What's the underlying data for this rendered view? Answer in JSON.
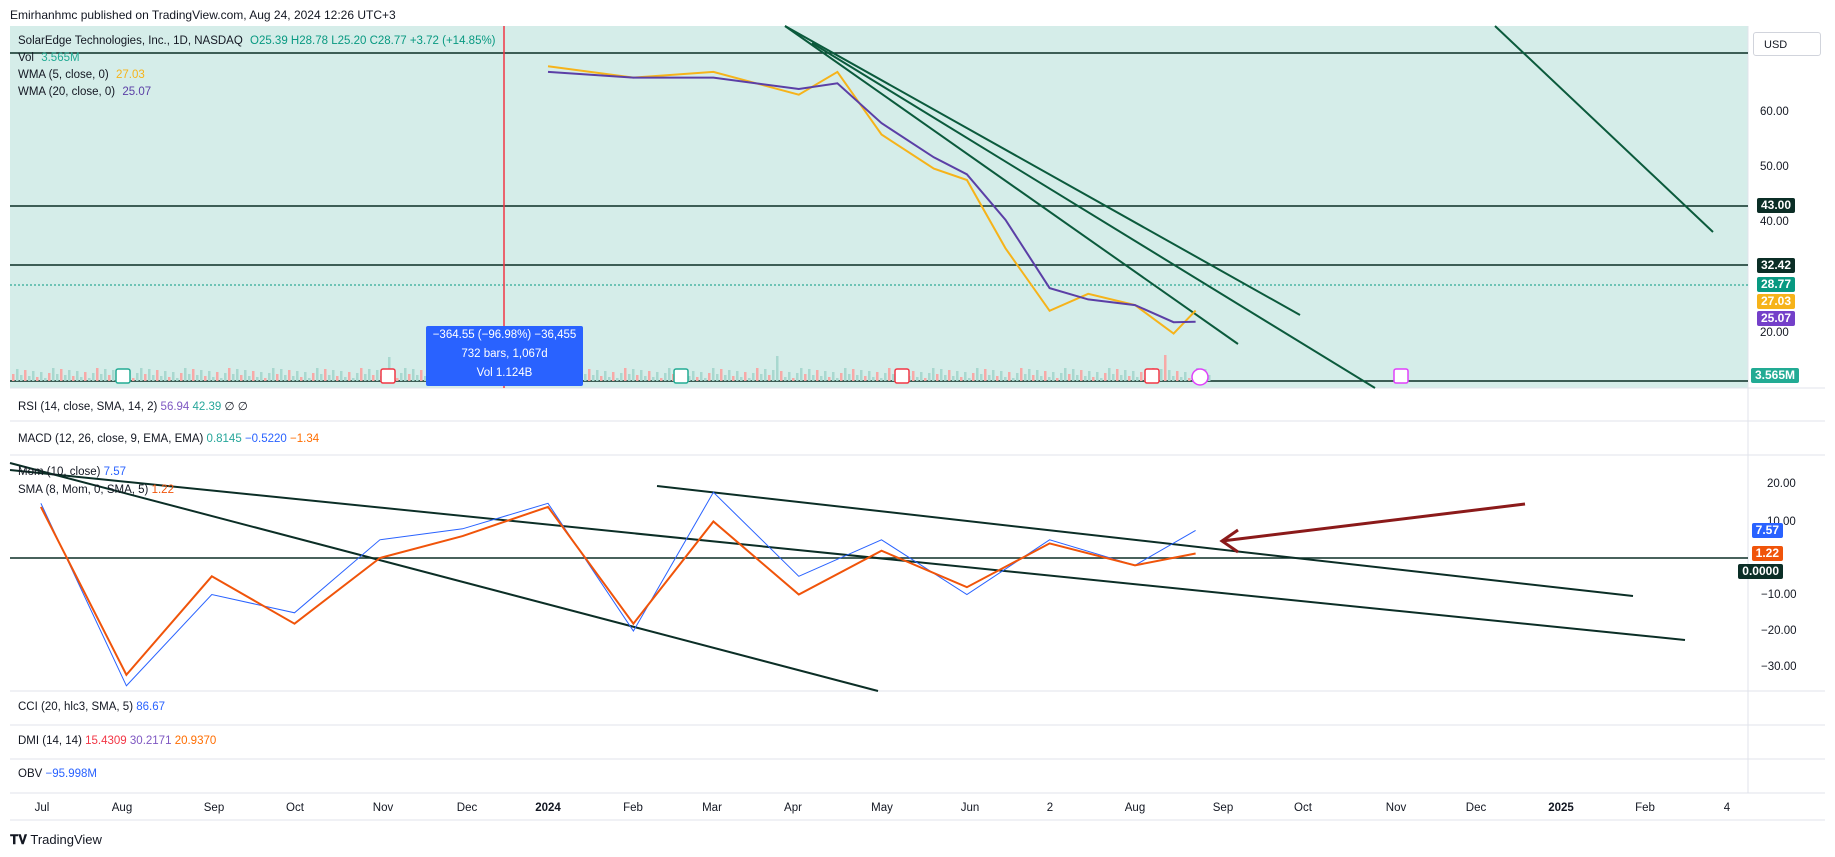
{
  "header": {
    "credit": "Emirhanhmc published on TradingView.com, Aug 24, 2024 12:26 UTC+3"
  },
  "legend": {
    "symbol": "SolarEdge Technologies, Inc., 1D, NASDAQ",
    "ohlc": "O25.39 H28.78 L25.20 C28.77 +3.72 (+14.85%)",
    "vol_label": "Vol",
    "vol_value": "3.565M",
    "wma5_label": "WMA (5, close, 0)",
    "wma5_value": "27.03",
    "wma20_label": "WMA (20, close, 0)",
    "wma20_value": "25.07"
  },
  "usd_button": "USD",
  "price_axis": {
    "ticks": [
      "60.00",
      "50.00",
      "40.00",
      "20.00"
    ],
    "tags": [
      {
        "label": "43.00",
        "color": "#0b2e26"
      },
      {
        "label": "32.42",
        "color": "#0b2e26"
      },
      {
        "label": "28.77",
        "color": "#089981"
      },
      {
        "label": "27.03",
        "color": "#f6b31a"
      },
      {
        "label": "25.07",
        "color": "#7440c9"
      },
      {
        "label": "3.565M",
        "color": "#22ab94"
      }
    ]
  },
  "measure": {
    "line1": "−364.55 (−96.98%) −36,455",
    "line2": "732 bars, 1,067d",
    "line3": "Vol 1.124B"
  },
  "panes": {
    "rsi": "RSI (14, close, SMA, 14, 2)",
    "rsi_v1": "56.94",
    "rsi_v2": "42.39",
    "rsi_v3": "∅ ∅",
    "macd": "MACD (12, 26, close, 9, EMA, EMA)",
    "macd_v1": "0.8145",
    "macd_v2": "−0.5220",
    "macd_v3": "−1.34",
    "mom": "Mom (10, close)",
    "mom_v": "7.57",
    "sma": "SMA (8, Mom, 0, SMA, 5)",
    "sma_v": "1.22",
    "cci": "CCI (20, hlc3, SMA, 5)",
    "cci_v": "86.67",
    "dmi": "DMI (14, 14)",
    "dmi_v1": "15.4309",
    "dmi_v2": "30.2171",
    "dmi_v3": "20.9370",
    "obv": "OBV",
    "obv_v": "−95.998M"
  },
  "mom_axis": {
    "ticks": [
      "20.00",
      "10.00",
      "−10.00",
      "−20.00",
      "−30.00"
    ],
    "tags": [
      {
        "label": "7.57",
        "color": "#2962ff"
      },
      {
        "label": "1.22",
        "color": "#f0540a"
      },
      {
        "label": "0.0000",
        "color": "#0b2e26"
      }
    ]
  },
  "time_axis": [
    "Jul",
    "Aug",
    "Sep",
    "Oct",
    "Nov",
    "Dec",
    "2024",
    "Feb",
    "Mar",
    "Apr",
    "May",
    "Jun",
    "2",
    "Aug",
    "Sep",
    "Oct",
    "Nov",
    "Dec",
    "2025",
    "Feb",
    "4"
  ],
  "footer": {
    "brand": "TradingView"
  },
  "chart_data": [
    {
      "type": "line",
      "title": "SolarEdge Technologies, Inc., 1D, NASDAQ",
      "ylabel": "USD",
      "ylim": [
        18,
        74
      ],
      "grid": true,
      "horizontal_levels": [
        43.0,
        32.42,
        72.0
      ],
      "series": [
        {
          "name": "WMA (5, close, 0)",
          "color": "#f6b31a",
          "x": [
            "2024-01-01",
            "2024-02-01",
            "2024-03-01",
            "2024-04-01",
            "2024-04-15",
            "2024-05-01",
            "2024-05-20",
            "2024-06-01",
            "2024-06-15",
            "2024-07-01",
            "2024-07-15",
            "2024-08-01",
            "2024-08-15",
            "2024-08-23"
          ],
          "values": [
            70,
            68,
            69,
            65,
            69,
            58,
            52,
            50,
            38,
            27,
            30,
            28,
            23,
            27.03
          ]
        },
        {
          "name": "WMA (20, close, 0)",
          "color": "#5b3fa6",
          "x": [
            "2024-01-01",
            "2024-02-01",
            "2024-03-01",
            "2024-04-01",
            "2024-04-15",
            "2024-05-01",
            "2024-05-20",
            "2024-06-01",
            "2024-06-15",
            "2024-07-01",
            "2024-07-15",
            "2024-08-01",
            "2024-08-15",
            "2024-08-23"
          ],
          "values": [
            69,
            68,
            68,
            66,
            67,
            60,
            54,
            51,
            43,
            31,
            29,
            28,
            25,
            25.07
          ]
        }
      ],
      "last_close": 28.77
    },
    {
      "type": "line",
      "title": "Mom (10, close)",
      "ylim": [
        -36,
        24
      ],
      "series": [
        {
          "name": "Mom (10, close)",
          "color": "#2962ff",
          "x": [
            "2023-07",
            "2023-08",
            "2023-09",
            "2023-10",
            "2023-11",
            "2023-12",
            "2024-01",
            "2024-02",
            "2024-03",
            "2024-04",
            "2024-05",
            "2024-06",
            "2024-07",
            "2024-08",
            "2024-08-23"
          ],
          "values": [
            15,
            -35,
            -10,
            -15,
            5,
            8,
            15,
            -20,
            18,
            -5,
            5,
            -10,
            5,
            -2,
            7.57
          ]
        },
        {
          "name": "SMA (8, Mom, 0, SMA, 5)",
          "color": "#f0540a",
          "x": [
            "2023-07",
            "2023-08",
            "2023-09",
            "2023-10",
            "2023-11",
            "2023-12",
            "2024-01",
            "2024-02",
            "2024-03",
            "2024-04",
            "2024-05",
            "2024-06",
            "2024-07",
            "2024-08",
            "2024-08-23"
          ],
          "values": [
            14,
            -32,
            -5,
            -18,
            0,
            6,
            14,
            -18,
            10,
            -10,
            2,
            -8,
            4,
            -2,
            1.22
          ]
        }
      ]
    }
  ]
}
